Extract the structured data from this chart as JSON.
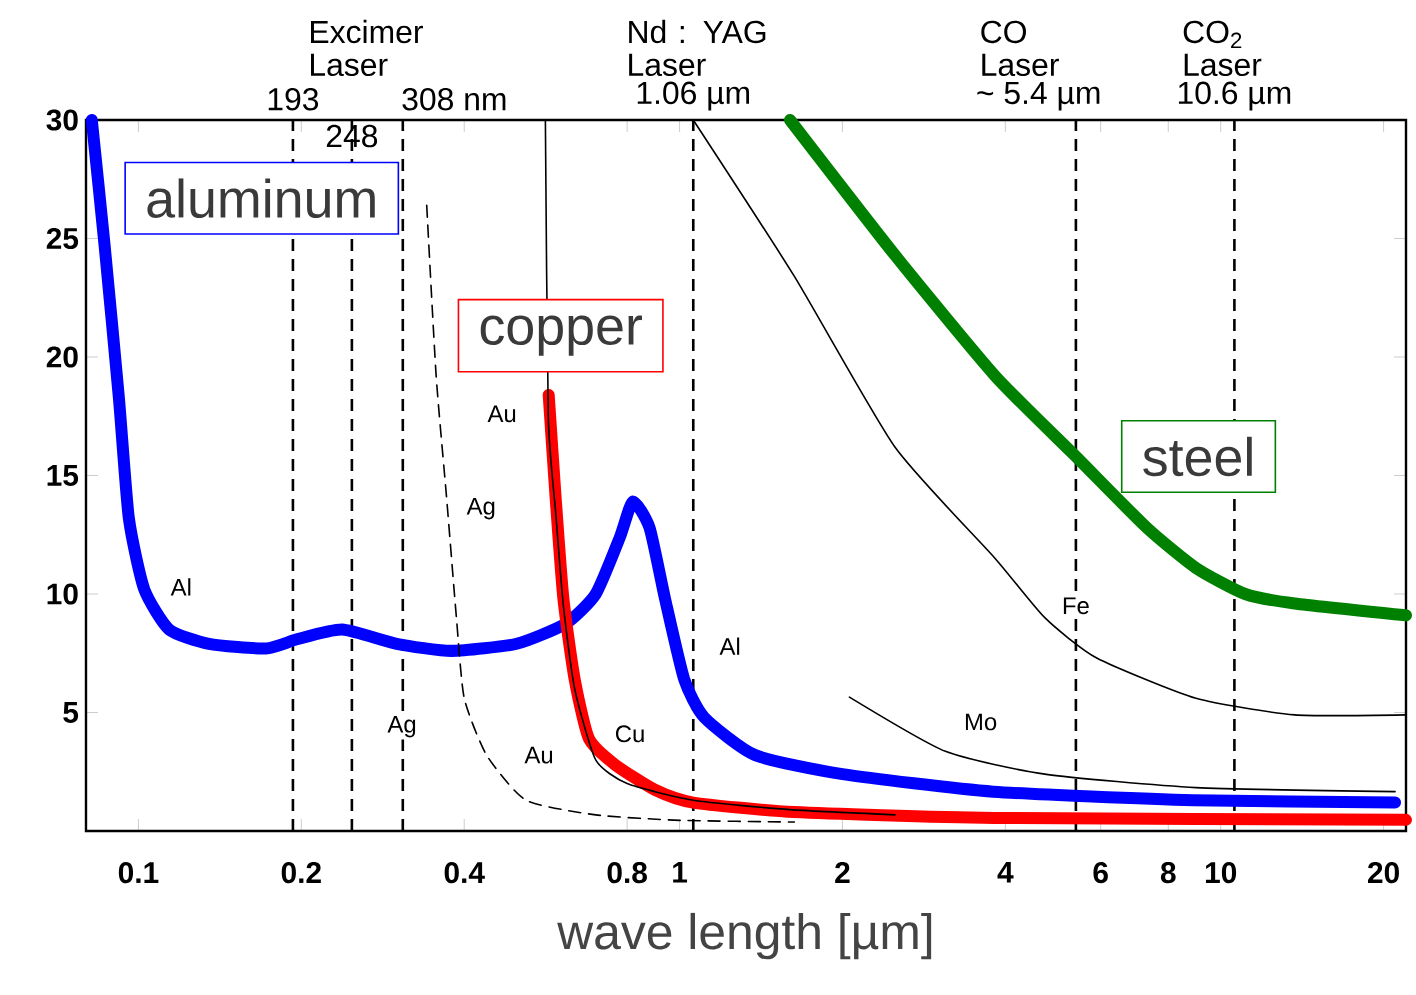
{
  "chart_data": {
    "type": "line",
    "xlabel": "wave length [µm]",
    "log": "x",
    "marker": "none",
    "xlim": [
      0.08,
      22
    ],
    "ylim": [
      0,
      30
    ],
    "xticks": [
      0.1,
      0.2,
      0.4,
      0.8,
      1,
      2,
      4,
      6,
      8,
      10,
      20
    ],
    "yticks": [
      5,
      10,
      15,
      20,
      25,
      30
    ],
    "series": [
      {
        "name": "aluminum",
        "color": "#0000ff",
        "x": [
          0.082,
          0.0866,
          0.092,
          0.096,
          0.1025,
          0.114,
          0.135,
          0.172,
          0.197,
          0.238,
          0.3,
          0.379,
          0.5,
          0.616,
          0.7,
          0.776,
          0.82,
          0.88,
          0.94,
          1.02,
          1.11,
          1.38,
          2.0,
          3.8,
          8.9,
          21
        ],
        "values": [
          30,
          24.7,
          18.3,
          13.2,
          10.2,
          8.5,
          7.9,
          7.7,
          8.1,
          8.5,
          7.9,
          7.6,
          7.9,
          8.75,
          10.0,
          12.4,
          13.9,
          12.8,
          9.8,
          6.4,
          4.8,
          3.2,
          2.4,
          1.66,
          1.3,
          1.2
        ]
      },
      {
        "name": "copper",
        "color": "#ff0000",
        "x": [
          0.573,
          0.59,
          0.61,
          0.64,
          0.68,
          0.76,
          0.9,
          1.06,
          1.63,
          3.8,
          22
        ],
        "values": [
          18.4,
          14.1,
          9.8,
          6.4,
          3.9,
          2.8,
          1.74,
          1.2,
          0.8,
          0.55,
          0.47
        ]
      },
      {
        "name": "steel",
        "color": "#008000",
        "x": [
          1.6,
          2.5,
          3.83,
          5.4,
          7.3,
          9.0,
          11.1,
          13.7,
          22
        ],
        "values": [
          30,
          24.3,
          19.2,
          15.8,
          12.8,
          11.1,
          10.0,
          9.6,
          9.1
        ]
      },
      {
        "color": "#000000",
        "line_style": "dashed",
        "x": [
          0.341,
          0.355,
          0.371,
          0.387,
          0.4,
          0.44,
          0.52,
          0.7,
          1.0,
          1.63
        ],
        "values": [
          26.4,
          19.2,
          14.1,
          9.0,
          5.6,
          3.2,
          1.3,
          0.68,
          0.45,
          0.38
        ]
      },
      {
        "color": "#000000",
        "x": [
          0.565,
          0.572,
          0.59,
          0.61,
          0.64,
          0.7,
          0.8,
          1.06,
          1.6,
          2.5
        ],
        "values": [
          30,
          17.5,
          13.5,
          9.5,
          6.0,
          3.0,
          2.0,
          1.3,
          0.9,
          0.68
        ]
      },
      {
        "color": "#000000",
        "x": [
          1.06,
          1.63,
          2.5,
          3.83,
          4.73,
          5.9,
          9.0,
          13.7,
          22
        ],
        "values": [
          30,
          23.4,
          16.2,
          11.5,
          9.0,
          7.3,
          5.6,
          4.9,
          4.9
        ]
      },
      {
        "color": "#000000",
        "x": [
          2.06,
          3.1,
          4.73,
          9.0,
          21
        ],
        "values": [
          5.65,
          3.36,
          2.4,
          1.83,
          1.66
        ]
      }
    ],
    "ref_lines": [
      {
        "axis": "x",
        "value": 0.193,
        "label": "193",
        "color": "#000000",
        "line_style": "dashed"
      },
      {
        "axis": "x",
        "value": 0.248,
        "label": "248",
        "color": "#000000",
        "line_style": "dashed"
      },
      {
        "axis": "x",
        "value": 0.308,
        "label": "308 nm",
        "color": "#000000",
        "line_style": "dashed"
      },
      {
        "axis": "x",
        "value": 1.06,
        "label": "1.06 µm",
        "color": "#000000",
        "line_style": "dashed"
      },
      {
        "axis": "x",
        "value": 5.4,
        "label": "~ 5.4 µm",
        "color": "#000000",
        "line_style": "dashed"
      },
      {
        "axis": "x",
        "value": 10.6,
        "label": "10.6 µm",
        "color": "#000000",
        "line_style": "dashed"
      }
    ],
    "annotations": [
      "Excimer Laser",
      "Nd : YAG Laser",
      "CO Laser",
      "CO$_{2}$ Laser",
      {
        "text": "Al",
        "x": 0.12,
        "y": 10.3
      },
      {
        "text": "Al",
        "x": 1.24,
        "y": 7.8
      },
      {
        "text": "Ag",
        "x": 0.43,
        "y": 13.6
      },
      {
        "text": "Ag",
        "x": 0.307,
        "y": 4.4
      },
      {
        "text": "Au",
        "x": 0.47,
        "y": 17.6
      },
      {
        "text": "Au",
        "x": 0.55,
        "y": 3.2
      },
      {
        "text": "Cu",
        "x": 0.81,
        "y": 4.1
      },
      {
        "text": "Fe",
        "x": 5.4,
        "y": 9.5
      },
      {
        "text": "Mo",
        "x": 3.6,
        "y": 4.6
      }
    ]
  }
}
